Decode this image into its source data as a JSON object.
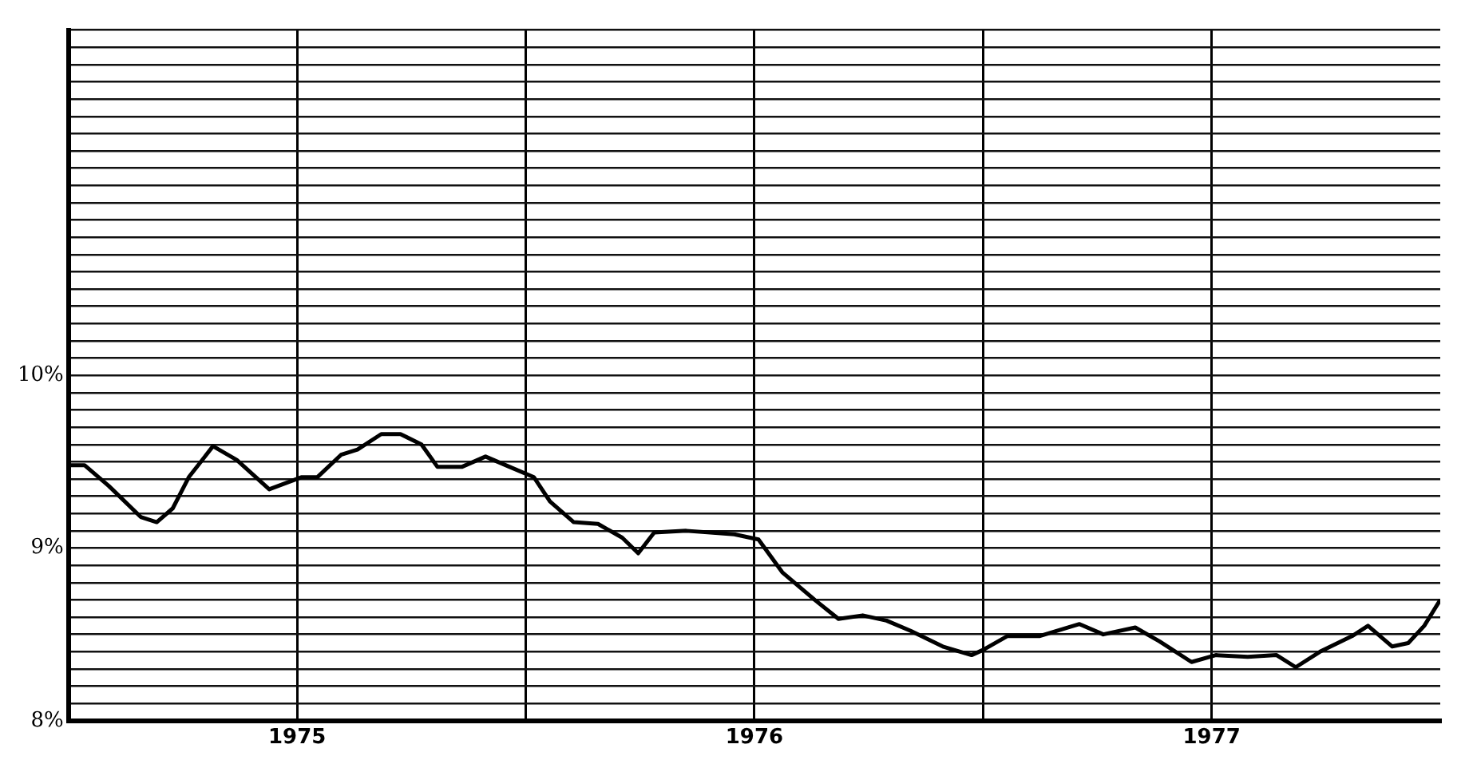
{
  "chart_data": {
    "type": "line",
    "x": [
      1975.0,
      1975.035,
      1975.088,
      1975.158,
      1975.193,
      1975.228,
      1975.263,
      1975.316,
      1975.368,
      1975.439,
      1975.509,
      1975.544,
      1975.596,
      1975.632,
      1975.684,
      1975.726,
      1975.772,
      1975.807,
      1975.86,
      1975.912,
      1975.965,
      1976.018,
      1976.053,
      1976.105,
      1976.158,
      1976.211,
      1976.246,
      1976.281,
      1976.351,
      1976.456,
      1976.509,
      1976.561,
      1976.632,
      1976.684,
      1976.737,
      1976.789,
      1976.842,
      1976.912,
      1976.975,
      1977.0,
      1977.053,
      1977.123,
      1977.211,
      1977.263,
      1977.333,
      1977.386,
      1977.456,
      1977.509,
      1977.579,
      1977.642,
      1977.684,
      1977.737,
      1977.807,
      1977.842,
      1977.895,
      1977.93,
      1977.965,
      1978.0
    ],
    "series": [
      {
        "color": "#000000",
        "values": [
          9.48,
          9.48,
          9.36,
          9.18,
          9.15,
          9.23,
          9.41,
          9.59,
          9.51,
          9.34,
          9.41,
          9.41,
          9.54,
          9.57,
          9.66,
          9.66,
          9.6,
          9.47,
          9.47,
          9.53,
          9.47,
          9.41,
          9.27,
          9.15,
          9.14,
          9.06,
          8.97,
          9.09,
          9.1,
          9.08,
          9.05,
          8.86,
          8.7,
          8.59,
          8.61,
          8.58,
          8.52,
          8.43,
          8.38,
          8.41,
          8.49,
          8.49,
          8.56,
          8.5,
          8.54,
          8.46,
          8.34,
          8.38,
          8.37,
          8.38,
          8.31,
          8.4,
          8.49,
          8.55,
          8.43,
          8.45,
          8.55,
          8.7
        ]
      }
    ],
    "xlim": [
      1975,
      1978
    ],
    "xticks": [
      {
        "value": 1975.5,
        "label": "1975"
      },
      {
        "value": 1976,
        "label": null
      },
      {
        "value": 1976.5,
        "label": "1976"
      },
      {
        "value": 1977,
        "label": null
      },
      {
        "value": 1977.5,
        "label": "1977"
      }
    ],
    "ylim": [
      8,
      12
    ],
    "yticks": [
      {
        "value": 8,
        "label": "8%"
      },
      {
        "value": 8.1,
        "label": null
      },
      {
        "value": 8.2,
        "label": null
      },
      {
        "value": 8.3,
        "label": null
      },
      {
        "value": 8.4,
        "label": null
      },
      {
        "value": 8.5,
        "label": null
      },
      {
        "value": 8.6,
        "label": null
      },
      {
        "value": 8.7,
        "label": null
      },
      {
        "value": 8.8,
        "label": null
      },
      {
        "value": 8.9,
        "label": null
      },
      {
        "value": 9,
        "label": "9%"
      },
      {
        "value": 9.1,
        "label": null
      },
      {
        "value": 9.2,
        "label": null
      },
      {
        "value": 9.3,
        "label": null
      },
      {
        "value": 9.4,
        "label": null
      },
      {
        "value": 9.5,
        "label": null
      },
      {
        "value": 9.6,
        "label": null
      },
      {
        "value": 9.7,
        "label": null
      },
      {
        "value": 9.8,
        "label": null
      },
      {
        "value": 9.9,
        "label": null
      },
      {
        "value": 10,
        "label": "10%"
      },
      {
        "value": 10.1,
        "label": null
      },
      {
        "value": 10.2,
        "label": null
      },
      {
        "value": 10.3,
        "label": null
      },
      {
        "value": 10.4,
        "label": null
      },
      {
        "value": 10.5,
        "label": null
      },
      {
        "value": 10.6,
        "label": null
      },
      {
        "value": 10.7,
        "label": null
      },
      {
        "value": 10.8,
        "label": null
      },
      {
        "value": 10.9,
        "label": null
      },
      {
        "value": 11,
        "label": null
      },
      {
        "value": 11.1,
        "label": null
      },
      {
        "value": 11.2,
        "label": null
      },
      {
        "value": 11.3,
        "label": null
      },
      {
        "value": 11.4,
        "label": null
      },
      {
        "value": 11.5,
        "label": null
      },
      {
        "value": 11.6,
        "label": null
      },
      {
        "value": 11.7,
        "label": null
      },
      {
        "value": 11.8,
        "label": null
      },
      {
        "value": 11.9,
        "label": null
      },
      {
        "value": 12,
        "label": null
      }
    ],
    "grid": true,
    "legend": false,
    "marker": "none",
    "line_style": "solid"
  }
}
